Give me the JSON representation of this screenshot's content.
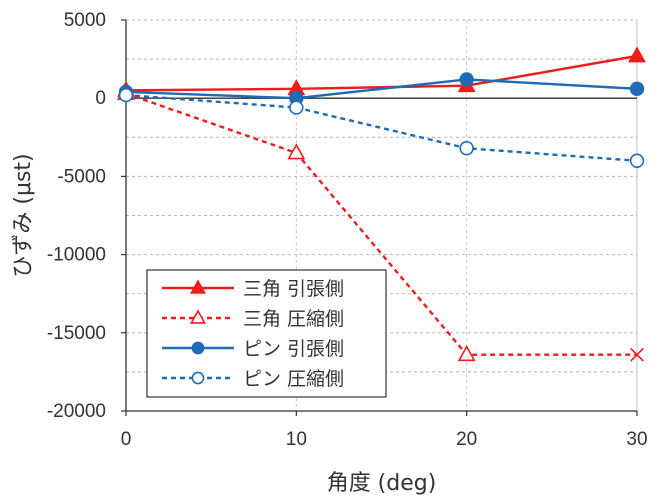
{
  "chart_data": {
    "type": "line",
    "title": "",
    "xlabel": "角度 (deg)",
    "ylabel": "ひずみ (μst)",
    "x": [
      0,
      10,
      20,
      30
    ],
    "x_ticks": [
      "0",
      "10",
      "20",
      "30"
    ],
    "xlim": [
      0,
      30
    ],
    "y_ticks": [
      "5000",
      "0",
      "-5000",
      "-10000",
      "-15000",
      "-20000"
    ],
    "ylim": [
      -20000,
      5000
    ],
    "grid": "horizontal dashed",
    "legend_position": "lower-left",
    "series": [
      {
        "name": "三角 引張側",
        "values": [
          500,
          600,
          800,
          2700
        ],
        "color": "#ee1c1c",
        "dash": "solid",
        "marker": "triangle",
        "filled": true
      },
      {
        "name": "三角 圧縮側",
        "values": [
          300,
          -3500,
          -16400,
          -16400
        ],
        "color": "#ee1c1c",
        "dash": "dashed",
        "marker": "triangle",
        "filled": false,
        "last_marker": "x"
      },
      {
        "name": "ピン 引張側",
        "values": [
          400,
          0,
          1200,
          600
        ],
        "color": "#1f6bb5",
        "dash": "solid",
        "marker": "circle",
        "filled": true
      },
      {
        "name": "ピン 圧縮側",
        "values": [
          200,
          -600,
          -3200,
          -4000
        ],
        "color": "#1f6bb5",
        "dash": "dashed",
        "marker": "circle",
        "filled": false
      }
    ]
  }
}
